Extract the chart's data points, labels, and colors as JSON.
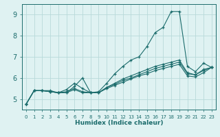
{
  "xlabel": "Humidex (Indice chaleur)",
  "ylabel": "",
  "bg_color": "#dff2f2",
  "grid_color": "#b8dada",
  "line_color": "#1a6b6b",
  "xlim": [
    -0.5,
    23.5
  ],
  "ylim": [
    4.5,
    9.5
  ],
  "xticks": [
    0,
    1,
    2,
    3,
    4,
    5,
    6,
    7,
    8,
    9,
    10,
    11,
    12,
    13,
    14,
    15,
    16,
    17,
    18,
    19,
    20,
    21,
    22,
    23
  ],
  "yticks": [
    5,
    6,
    7,
    8,
    9
  ],
  "series": [
    [
      4.75,
      5.4,
      5.4,
      5.35,
      5.3,
      5.45,
      5.75,
      5.5,
      5.3,
      5.35,
      5.75,
      6.2,
      6.55,
      6.85,
      7.0,
      7.5,
      8.15,
      8.4,
      9.15,
      9.15,
      6.55,
      6.3,
      6.7,
      6.5
    ],
    [
      4.75,
      5.4,
      5.4,
      5.35,
      5.3,
      5.35,
      5.5,
      5.35,
      5.3,
      5.3,
      5.55,
      5.75,
      5.95,
      6.1,
      6.25,
      6.4,
      6.55,
      6.65,
      6.75,
      6.85,
      6.25,
      6.15,
      6.4,
      6.5
    ],
    [
      4.75,
      5.4,
      5.4,
      5.35,
      5.3,
      5.3,
      5.45,
      5.3,
      5.3,
      5.3,
      5.5,
      5.65,
      5.8,
      5.95,
      6.1,
      6.2,
      6.35,
      6.45,
      6.55,
      6.65,
      6.1,
      6.05,
      6.25,
      6.5
    ],
    [
      4.75,
      5.4,
      5.4,
      5.4,
      5.3,
      5.3,
      5.6,
      6.0,
      5.3,
      5.3,
      5.55,
      5.7,
      5.88,
      6.0,
      6.15,
      6.3,
      6.45,
      6.55,
      6.65,
      6.75,
      6.2,
      6.15,
      6.35,
      6.5
    ]
  ]
}
